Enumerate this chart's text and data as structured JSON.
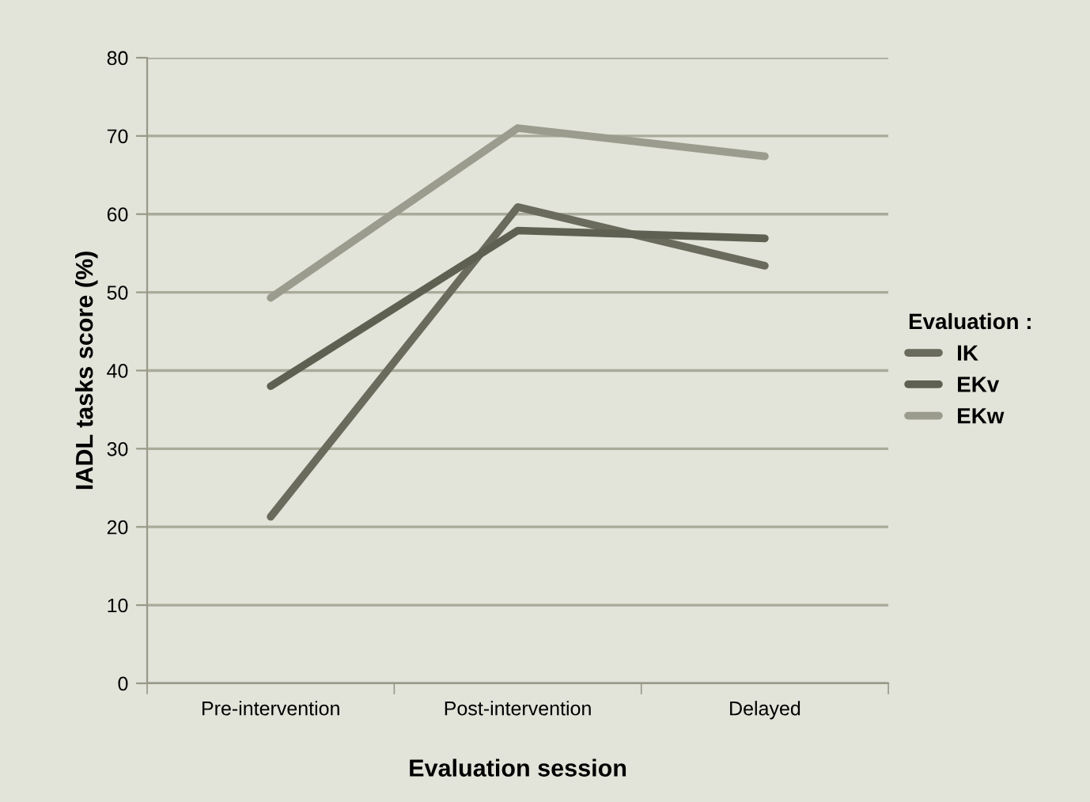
{
  "chart_data": {
    "type": "line",
    "xlabel": "Evaluation session",
    "ylabel": "IADL tasks score (%)",
    "legend_title": "Evaluation :",
    "categories": [
      "Pre-intervention",
      "Post-intervention",
      "Delayed"
    ],
    "series": [
      {
        "name": "IK",
        "color": "#6a6b5d",
        "values": [
          21.3,
          60.9,
          53.4
        ]
      },
      {
        "name": "EKv",
        "color": "#5e6051",
        "values": [
          38.0,
          57.9,
          56.9
        ]
      },
      {
        "name": "EKw",
        "color": "#9b9b8e",
        "values": [
          49.3,
          71.0,
          67.4
        ]
      }
    ],
    "ylim": [
      0,
      80
    ],
    "yticks": [
      0,
      10,
      20,
      30,
      40,
      50,
      60,
      70,
      80
    ],
    "grid": "y",
    "legend": "right",
    "marker": "none",
    "line_style": "solid"
  }
}
